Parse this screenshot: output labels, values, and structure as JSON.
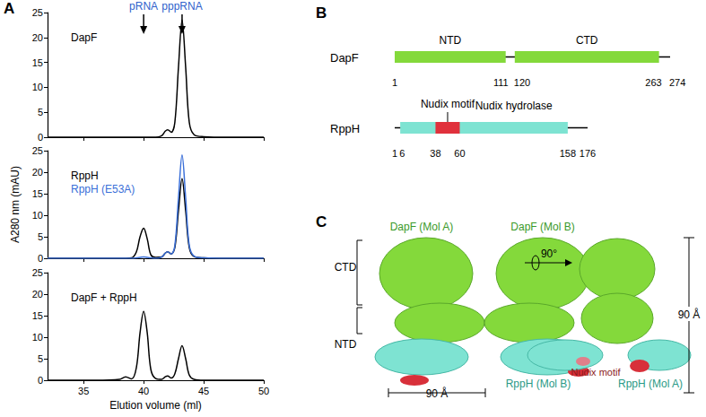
{
  "panel_labels": [
    "A",
    "B",
    "C"
  ],
  "chart_data": [
    {
      "type": "line",
      "x": [
        32,
        34,
        36,
        38,
        38.5,
        39,
        39.4,
        39.7,
        40,
        40.3,
        40.6,
        41,
        41.5,
        41.8,
        42,
        42.3,
        42.6,
        42.9,
        43.2,
        43.5,
        43.8,
        44.2,
        45,
        47,
        50
      ],
      "series": [
        {
          "name": "DapF",
          "color": "#000000",
          "values": [
            0,
            0,
            0,
            0,
            0,
            0,
            0,
            0,
            0,
            0,
            0,
            0,
            0.3,
            1.2,
            1.5,
            1,
            3,
            14,
            23.5,
            14,
            3,
            0.5,
            0.1,
            0,
            0
          ]
        }
      ],
      "xlim": [
        32,
        50
      ],
      "xticks": [
        35,
        40,
        45,
        50
      ],
      "ylim": [
        0,
        25
      ],
      "yticks": [
        0,
        5,
        10,
        15,
        20,
        25
      ],
      "grid": false,
      "tick_labels": "y",
      "annotations": [
        {
          "text": "pRNA",
          "x": 40
        },
        {
          "text": "pppRNA",
          "x": 43.2
        }
      ]
    },
    {
      "type": "line",
      "x": [
        32,
        34,
        36,
        38,
        38.5,
        39,
        39.4,
        39.7,
        40,
        40.3,
        40.6,
        41,
        41.5,
        41.8,
        42,
        42.3,
        42.6,
        42.9,
        43.2,
        43.5,
        43.8,
        44.2,
        45,
        47,
        50
      ],
      "series": [
        {
          "name": "RppH",
          "color": "#000000",
          "values": [
            0,
            0,
            0,
            0,
            0,
            0.1,
            1.5,
            5,
            7,
            4.5,
            0.8,
            0.2,
            0.3,
            1.2,
            1.5,
            1,
            2.5,
            11,
            18.5,
            11,
            2.5,
            0.4,
            0.1,
            0,
            0
          ]
        },
        {
          "name": "RppH (E53A)",
          "color": "#3a6fd8",
          "values": [
            0,
            0,
            0,
            0,
            0,
            0,
            0.1,
            0.2,
            0.3,
            0.2,
            0.1,
            0,
            0.3,
            1.2,
            1.5,
            1,
            3,
            14,
            24,
            14,
            3,
            0.5,
            0.1,
            0,
            0
          ]
        }
      ],
      "xlim": [
        32,
        50
      ],
      "xticks": [
        35,
        40,
        45,
        50
      ],
      "ylim": [
        0,
        25
      ],
      "yticks": [
        0,
        5,
        10,
        15,
        20,
        25
      ],
      "y_label": "A280 nm (mAU)",
      "grid": false,
      "tick_labels": "y"
    },
    {
      "type": "line",
      "x": [
        32,
        34,
        36,
        38,
        38.5,
        39,
        39.4,
        39.7,
        40,
        40.3,
        40.6,
        41,
        41.5,
        41.8,
        42,
        42.3,
        42.6,
        42.9,
        43.2,
        43.5,
        43.8,
        44.2,
        45,
        47,
        50
      ],
      "series": [
        {
          "name": "DapF + RppH",
          "color": "#000000",
          "values": [
            0,
            0,
            0,
            0.2,
            0.8,
            0.3,
            3,
            11,
            16,
            11,
            2.5,
            0.4,
            0.2,
            0.8,
            1,
            0.5,
            1.5,
            5,
            8,
            5,
            1.2,
            0.2,
            0,
            0,
            0
          ]
        }
      ],
      "xlim": [
        32,
        50
      ],
      "xticks": [
        35,
        40,
        45,
        50
      ],
      "ylim": [
        0,
        25
      ],
      "yticks": [
        0,
        5,
        10,
        15,
        20,
        25
      ],
      "x_label": "Elution volume (ml)",
      "grid": false,
      "tick_labels": true
    }
  ],
  "domains": [
    {
      "name": "DapF",
      "length": 274,
      "segments": [
        {
          "label": "NTD",
          "start": 1,
          "end": 111,
          "color": "#84d93b"
        },
        {
          "label": "CTD",
          "start": 120,
          "end": 263,
          "color": "#84d93b"
        }
      ],
      "ticks": [
        1,
        111,
        120,
        263,
        274
      ]
    },
    {
      "name": "RppH",
      "length": 176,
      "segments": [
        {
          "label": "Nudix hydrolase",
          "start": 6,
          "end": 158,
          "color": "#7ee3d2"
        },
        {
          "label": "Nudix motif",
          "start": 38,
          "end": 60,
          "color": "#e0313c"
        }
      ],
      "ticks": [
        1,
        6,
        38,
        60,
        158,
        176
      ]
    }
  ],
  "structure": {
    "top_labels": [
      "DapF (Mol A)",
      "DapF (Mol B)"
    ],
    "domain_labels": [
      "CTD",
      "NTD"
    ],
    "width_label": "90 Å",
    "rotation_label": "90°",
    "motif_label": "Nudix motif",
    "bottom_labels": [
      "RppH (Mol B)",
      "RppH (Mol A)"
    ],
    "height_label": "90 Å"
  }
}
